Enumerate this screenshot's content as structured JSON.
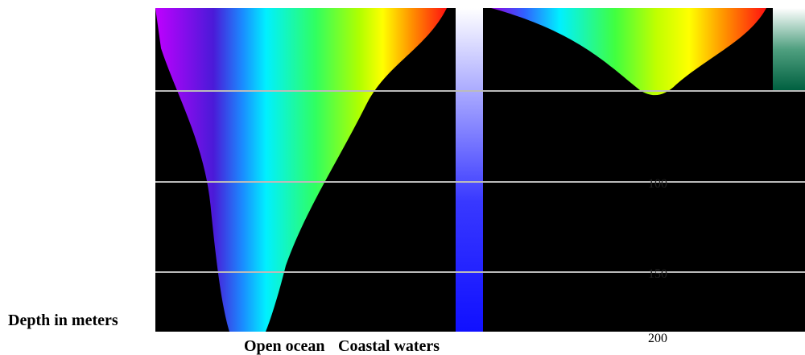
{
  "axis_label": "Depth in meters",
  "columns": [
    "Open ocean",
    "Coastal waters"
  ],
  "depth_labels": [
    "100",
    "150",
    "200"
  ]
}
